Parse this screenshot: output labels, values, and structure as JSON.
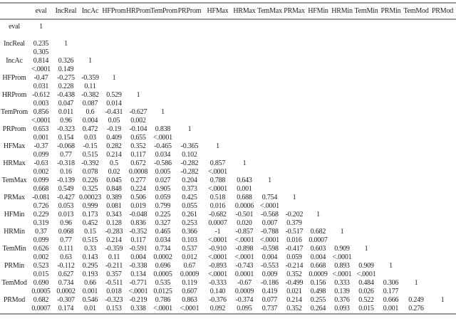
{
  "columns": [
    "eval",
    "IncReal",
    "IncAc",
    "HFProm",
    "HRProm",
    "TemProm",
    "PRProm",
    "HFMax",
    "HRMax",
    "TemMax",
    "PRMax",
    "HFMin",
    "HRMin",
    "TemMin",
    "PRMin",
    "TemMod",
    "PRMod"
  ],
  "rows": [
    {
      "label": "eval",
      "r": [
        "1"
      ],
      "p": []
    },
    {
      "label": "IncReal",
      "r": [
        "0.235",
        "1"
      ],
      "p": [
        "0.305"
      ]
    },
    {
      "label": "IncAc",
      "r": [
        "0.814",
        "0.326",
        "1"
      ],
      "p": [
        "<.0001",
        "0.149"
      ]
    },
    {
      "label": "HFProm",
      "r": [
        "-0.47",
        "-0.275",
        "-0.359",
        "1"
      ],
      "p": [
        "0.031",
        "0.228",
        "0.11"
      ]
    },
    {
      "label": "HRProm",
      "r": [
        "-0.612",
        "-0.438",
        "-0.382",
        "0.529",
        "1"
      ],
      "p": [
        "0.003",
        "0.047",
        "0.087",
        "0.014"
      ]
    },
    {
      "label": "TemProm",
      "r": [
        "0.856",
        "0.011",
        "0.6",
        "-0.431",
        "-0.627",
        "1"
      ],
      "p": [
        "<.0001",
        "0.96",
        "0.004",
        "0.05",
        "0.002"
      ]
    },
    {
      "label": "PRProm",
      "r": [
        "0.653",
        "-0.323",
        "0.472",
        "-0.19",
        "-0.104",
        "0.838",
        "1"
      ],
      "p": [
        "0.001",
        "0.154",
        "0.03",
        "0.409",
        "0.655",
        "<.0001"
      ]
    },
    {
      "label": "HFMax",
      "r": [
        "-0.37",
        "-0.068",
        "-0.15",
        "0.282",
        "0.352",
        "-0.465",
        "-0.365",
        "1"
      ],
      "p": [
        "0.099",
        "0.77",
        "0.515",
        "0.214",
        "0.117",
        "0.034",
        "0.102"
      ]
    },
    {
      "label": "HRMax",
      "r": [
        "-0.63",
        "-0.318",
        "-0.392",
        "0.5",
        "0.672",
        "-0.586",
        "-0.282",
        "0.857",
        "1"
      ],
      "p": [
        "0.002",
        "0.16",
        "0.078",
        "0.02",
        "0.0008",
        "0.005",
        "-0.282",
        "<.0001"
      ]
    },
    {
      "label": "TemMax",
      "r": [
        "0.099",
        "-0.139",
        "0.226",
        "0.045",
        "0.277",
        "0.027",
        "0.204",
        "0.788",
        "0.643",
        "1"
      ],
      "p": [
        "0.668",
        "0.549",
        "0.325",
        "0.848",
        "0.224",
        "0.905",
        "0.373",
        "<.0001",
        "0.001"
      ]
    },
    {
      "label": "PRMax",
      "r": [
        "-0.081",
        "-0.427",
        "0.00023",
        "0.389",
        "0.506",
        "0.059",
        "0.425",
        "0.518",
        "0.688",
        "0.754",
        "1"
      ],
      "p": [
        "0.726",
        "0.053",
        "0.999",
        "0.081",
        "0.019",
        "0.799",
        "0.055",
        "0.016",
        "0.0006",
        "<.0001"
      ]
    },
    {
      "label": "HFMin",
      "r": [
        "0.229",
        "0.013",
        "0.173",
        "0.343",
        "-0.048",
        "0.225",
        "0.261",
        "-0.682",
        "-0.501",
        "-0.568",
        "-0.202",
        "1"
      ],
      "p": [
        "0.319",
        "0.96",
        "0.452",
        "0.128",
        "0.836",
        "0.327",
        "0.253",
        "0.0007",
        "0.020",
        "0.007",
        "0.379"
      ]
    },
    {
      "label": "HRMin",
      "r": [
        "0.37",
        "0.068",
        "0.15",
        "-0.283",
        "-0.352",
        "0.465",
        "0.366",
        "-1",
        "-0.857",
        "-0.788",
        "-0.517",
        "0.682",
        "1"
      ],
      "p": [
        "0.099",
        "0.77",
        "0.515",
        "0.214",
        "0.117",
        "0.034",
        "0.103",
        "<.0001",
        "<.0001",
        "<.0001",
        "0.016",
        "0.0007"
      ]
    },
    {
      "label": "TemMin",
      "r": [
        "0.626",
        "0.111",
        "0.33",
        "-0.359",
        "-0.591",
        "0.734",
        "0.537",
        "-0.910",
        "-0.898",
        "-0.598",
        "-0.417",
        "0.603",
        "0.909",
        "1"
      ],
      "p": [
        "0.002",
        "0.63",
        "0.143",
        "0.11",
        "0.004",
        "0.0002",
        "0.012",
        "<.0001",
        "<.0001",
        "0.004",
        "0.059",
        "0.004",
        "<.0001"
      ]
    },
    {
      "label": "PRMin",
      "r": [
        "0.523",
        "-0.112",
        "0.295",
        "-0.211",
        "-0.338",
        "0.696",
        "0.67",
        "-0.893",
        "-0.743",
        "-0.553",
        "-0.214",
        "0.668",
        "0.893",
        "0.909",
        "1"
      ],
      "p": [
        "0.015",
        "0.627",
        "0.193",
        "0.357",
        "0.134",
        "0.0005",
        "0.0009",
        "<.0001",
        "0.0001",
        "0.009",
        "0.352",
        "0.0009",
        "<.0001",
        "<.0001"
      ]
    },
    {
      "label": "TemMod",
      "r": [
        "0.690",
        "0.734",
        "0.66",
        "-0.511",
        "-0.771",
        "0.535",
        "0.119",
        "-0.333",
        "-0.67",
        "-0.186",
        "-0.499",
        "0.156",
        "0.333",
        "0.484",
        "0.306",
        "1"
      ],
      "p": [
        "0.0005",
        "0.0002",
        "0.001",
        "0.018",
        "<.0001",
        "0.0125",
        "0.607",
        "0.140",
        "0.0009",
        "0.419",
        "0.021",
        "0.498",
        "0.139",
        "0.026",
        "0.177"
      ]
    },
    {
      "label": "PRMod",
      "r": [
        "0.682",
        "-0.307",
        "0.546",
        "-0.323",
        "-0.219",
        "0.786",
        "0.863",
        "-0.376",
        "-0.374",
        "0.077",
        "0.214",
        "0.255",
        "0.376",
        "0.522",
        "0.666",
        "0.249",
        "1"
      ],
      "p": [
        "0.0007",
        "0.174",
        "0.01",
        "0.153",
        "0.338",
        "<.0001",
        "<.0001",
        "0.092",
        "0.095",
        "0.737",
        "0.352",
        "0.264",
        "0.093",
        "0.015",
        "0.001",
        "0.276"
      ]
    }
  ]
}
